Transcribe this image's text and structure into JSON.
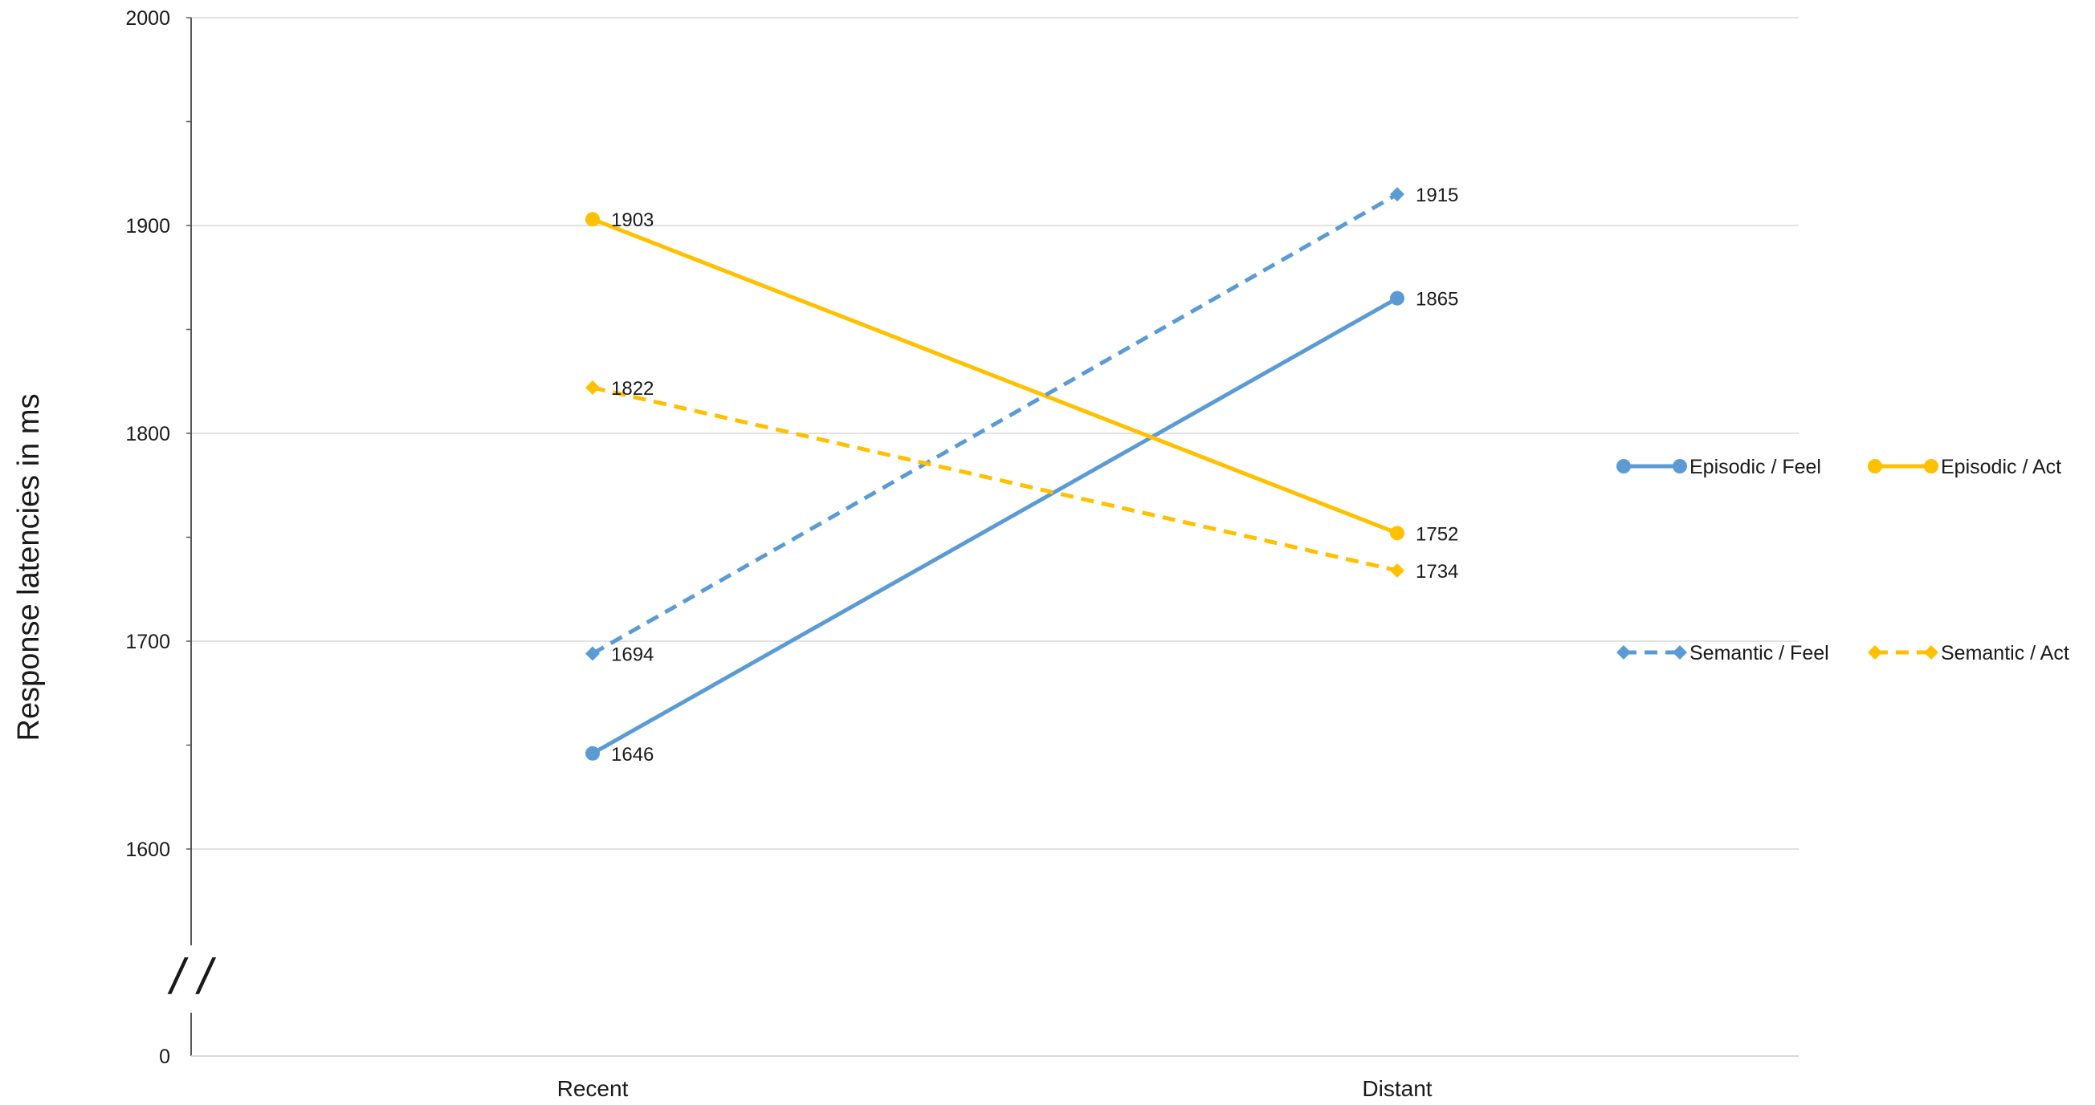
{
  "chart_data": {
    "type": "line",
    "ylabel": "Response latencies in ms",
    "xlabel": "",
    "categories": [
      "Recent",
      "Distant"
    ],
    "y_ticks": [
      0,
      1600,
      1700,
      1800,
      1900,
      2000
    ],
    "y_tick_labels": [
      "0",
      "1600",
      "1700",
      "1800",
      "1900",
      "2000"
    ],
    "ylim_main": [
      1600,
      2000
    ],
    "axis_break": {
      "from": 0,
      "to": 1600,
      "symbol": "/ /"
    },
    "grid": true,
    "legend_position": "right",
    "series": [
      {
        "name": "Episodic / Feel",
        "values": [
          1646,
          1865
        ],
        "color": "#5B9BD5",
        "dash": "solid",
        "marker": "circle"
      },
      {
        "name": "Episodic / Act",
        "values": [
          1903,
          1752
        ],
        "color": "#FFC000",
        "dash": "solid",
        "marker": "circle"
      },
      {
        "name": "Semantic / Feel",
        "values": [
          1694,
          1915
        ],
        "color": "#5B9BD5",
        "dash": "dashed",
        "marker": "diamond"
      },
      {
        "name": "Semantic / Act",
        "values": [
          1822,
          1734
        ],
        "color": "#FFC000",
        "dash": "dashed",
        "marker": "diamond"
      }
    ],
    "data_labels": [
      [
        "1646",
        "1865"
      ],
      [
        "1903",
        "1752"
      ],
      [
        "1694",
        "1915"
      ],
      [
        "1822",
        "1734"
      ]
    ]
  }
}
